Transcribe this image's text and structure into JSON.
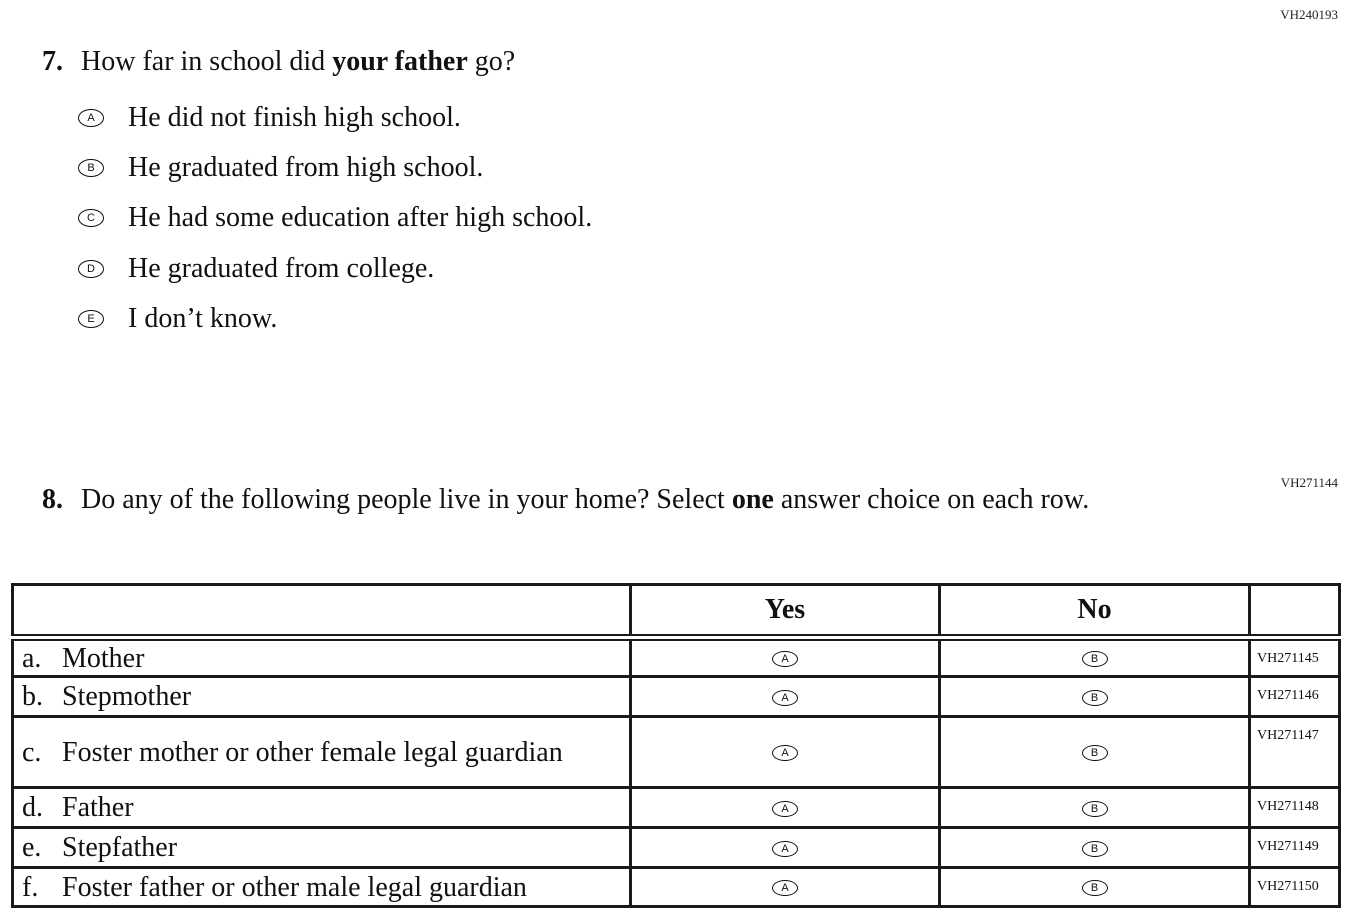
{
  "q7": {
    "code": "VH240193",
    "number": "7.",
    "text_before": "How far in school did ",
    "text_bold": "your father",
    "text_after": " go?",
    "options": [
      {
        "letter": "A",
        "text": "He did not finish high school."
      },
      {
        "letter": "B",
        "text": "He graduated from high school."
      },
      {
        "letter": "C",
        "text": "He had some education after high school."
      },
      {
        "letter": "D",
        "text": "He graduated from college."
      },
      {
        "letter": "E",
        "text": "I don’t know."
      }
    ]
  },
  "q8": {
    "code": "VH271144",
    "number": "8.",
    "text_before": "Do any of the following people live in your home? Select ",
    "text_bold": "one",
    "text_after": " answer choice on each row.",
    "columns": [
      "Yes",
      "No"
    ],
    "rows": [
      {
        "letter": "a.",
        "label": "Mother",
        "code": "VH271145",
        "yes": "A",
        "no": "B"
      },
      {
        "letter": "b.",
        "label": "Stepmother",
        "code": "VH271146",
        "yes": "A",
        "no": "B"
      },
      {
        "letter": "c.",
        "label": "Foster mother or other female legal guardian",
        "code": "VH271147",
        "yes": "A",
        "no": "B"
      },
      {
        "letter": "d.",
        "label": "Father",
        "code": "VH271148",
        "yes": "A",
        "no": "B"
      },
      {
        "letter": "e.",
        "label": "Stepfather",
        "code": "VH271149",
        "yes": "A",
        "no": "B"
      },
      {
        "letter": "f.",
        "label": "Foster father or other male legal guardian",
        "code": "VH271150",
        "yes": "A",
        "no": "B"
      }
    ]
  }
}
